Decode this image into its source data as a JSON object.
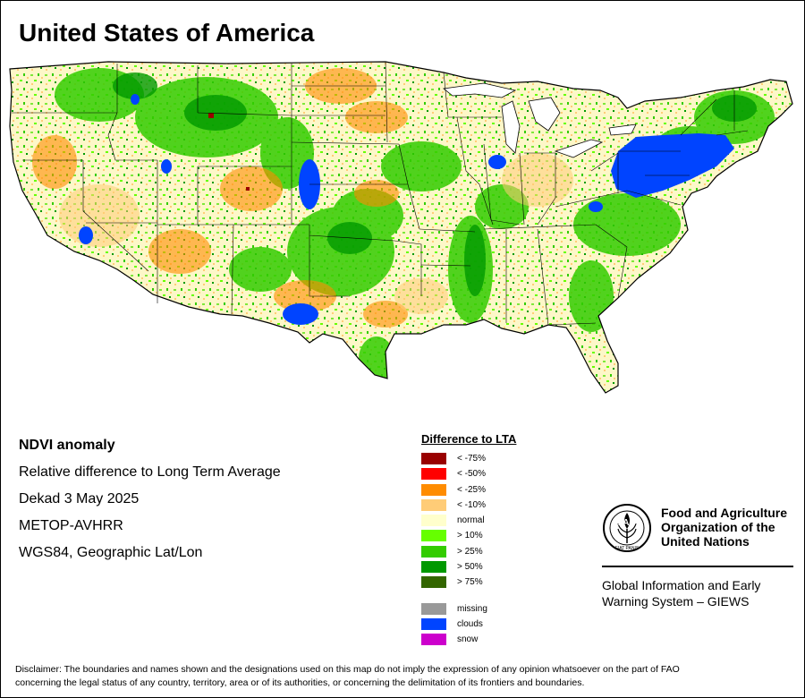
{
  "title": "United States of America",
  "info": {
    "heading": "NDVI anomaly",
    "line1": "Relative difference to Long Term Average",
    "line2": "Dekad 3 May 2025",
    "line3": "METOP-AVHRR",
    "line4": "WGS84, Geographic Lat/Lon"
  },
  "legend": {
    "title": "Difference to LTA",
    "classes": [
      {
        "label": "< -75%",
        "color": "#990000"
      },
      {
        "label": "< -50%",
        "color": "#ff0000"
      },
      {
        "label": "< -25%",
        "color": "#ff8c00"
      },
      {
        "label": "< -10%",
        "color": "#ffcc77"
      },
      {
        "label": "normal",
        "color": "#ffffcc"
      },
      {
        "label": "> 10%",
        "color": "#66ff00"
      },
      {
        "label": "> 25%",
        "color": "#33cc00"
      },
      {
        "label": "> 50%",
        "color": "#009900"
      },
      {
        "label": "> 75%",
        "color": "#336600"
      }
    ],
    "other": [
      {
        "label": "missing",
        "color": "#999999"
      },
      {
        "label": "clouds",
        "color": "#0044ff"
      },
      {
        "label": "snow",
        "color": "#cc00cc"
      }
    ]
  },
  "fao": {
    "logo_letters": "FAO",
    "motto": "FIAT PANIS",
    "name_line1": "Food and Agriculture",
    "name_line2": "Organization of the",
    "name_line3": "United Nations",
    "giews_line1": "Global Information and Early",
    "giews_line2": "Warning System – GIEWS"
  },
  "disclaimer_line1": "Disclaimer: The boundaries and names shown and the designations used on this map do not imply the expression of any opinion whatsoever on the part of FAO",
  "disclaimer_line2": "concerning the legal status of any country, territory, area or of its authorities, or concerning the delimitation of its frontiers and boundaries."
}
